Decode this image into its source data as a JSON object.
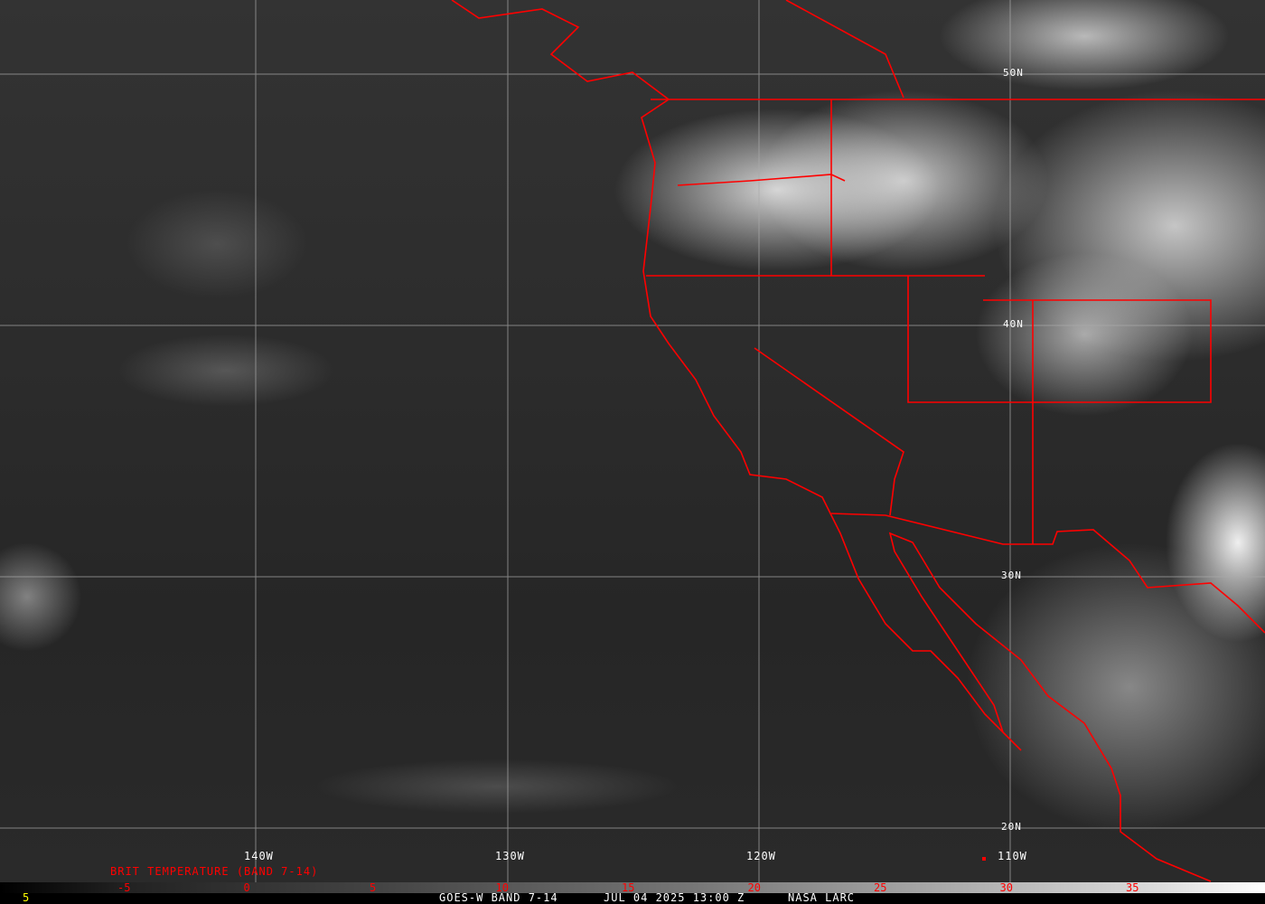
{
  "map": {
    "longitude_labels": [
      "140W",
      "130W",
      "120W",
      "110W"
    ],
    "latitude_labels": [
      "50N",
      "40N",
      "30N",
      "20N"
    ],
    "border_color": "#ff0000",
    "grid_color": "#aaaaaa"
  },
  "legend": {
    "title": "BRIT TEMPERATURE (BAND 7-14)",
    "ticks": [
      "-5",
      "0",
      "5",
      "10",
      "15",
      "20",
      "25",
      "30",
      "35"
    ],
    "corner_value": "5"
  },
  "footer": {
    "satellite": "GOES-W BAND 7-14",
    "datetime": "JUL 04 2025 13:00 Z",
    "source": "NASA LARC"
  }
}
